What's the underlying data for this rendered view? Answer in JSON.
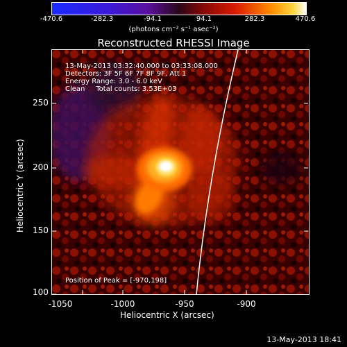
{
  "colorbar": {
    "tick_labels": [
      "-470.6",
      "-282.3",
      "-94.1",
      "94.1",
      "282.3",
      "470.6"
    ],
    "units": "(photons cm⁻² s⁻¹ asec⁻²)",
    "range": [
      -470.6,
      470.6
    ]
  },
  "title": "Reconstructed RHESSI Image",
  "info": {
    "time": "13-May-2013 03:32:40.000 to 03:33:08.000",
    "detectors": "Detectors: 3F 5F 6F 7F 8F 9F, Att 1",
    "energy": "Energy Range: 3.0 - 6.0 keV",
    "clean": "Clean     Total counts: 3.53E+03",
    "peak": "Position of Peak = [-970,198]"
  },
  "axes": {
    "xlabel": "Heliocentric X (arcsec)",
    "ylabel": "Heliocentric Y (arcsec)",
    "xticks": [
      "-1050",
      "-1000",
      "-950",
      "-900"
    ],
    "yticks": [
      "250",
      "200",
      "150",
      "100"
    ],
    "xlim": [
      -1074,
      -865
    ],
    "ylim": [
      100,
      283
    ]
  },
  "footer": {
    "date": "13-May-2013 18:41"
  },
  "colors": {
    "background": "#000000",
    "text": "#ffffff",
    "limb": "#ffffff"
  }
}
